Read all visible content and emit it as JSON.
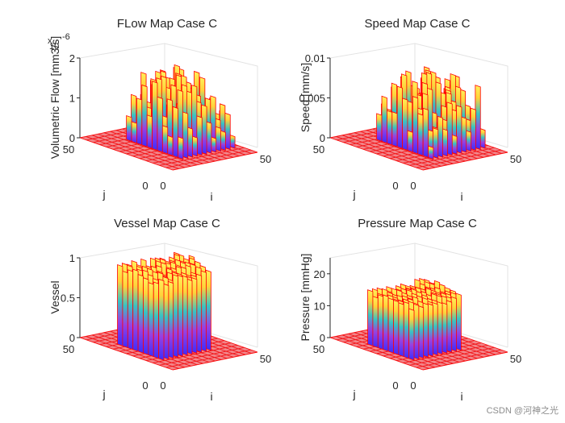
{
  "colors": {
    "mesh_edge": "#ff0000",
    "colormap": [
      "#3b2cff",
      "#7a3cff",
      "#c040c0",
      "#30c8c8",
      "#ffd23a",
      "#ffe94a"
    ],
    "box": "#e3e3e3",
    "text": "#262626"
  },
  "chart_data": [
    {
      "type": "surface",
      "title": "FLow Map Case C",
      "zlabel": "Volumetric Flow [mm3/s]",
      "exponent_marker": "x",
      "exponent": "10",
      "exponent_power": "-6",
      "xlabel": "i",
      "ylabel": "j",
      "x_tick_labels": [
        "0",
        "50"
      ],
      "y_tick_labels": [
        "50",
        "0"
      ],
      "z_tick_labels": [
        "0",
        "1",
        "2"
      ],
      "zlim": [
        0,
        2
      ],
      "x_range": [
        0,
        50
      ],
      "y_range": [
        0,
        50
      ],
      "surface": "sparse",
      "peak_relative": 0.85
    },
    {
      "type": "surface",
      "title": "Speed Map Case C",
      "zlabel": "Speed [mm/s]",
      "xlabel": "i",
      "ylabel": "j",
      "x_tick_labels": [
        "0",
        "50"
      ],
      "y_tick_labels": [
        "50",
        "0"
      ],
      "z_tick_labels": [
        "0",
        "0.005",
        "0.01"
      ],
      "zlim": [
        0,
        0.01
      ],
      "x_range": [
        0,
        50
      ],
      "y_range": [
        0,
        50
      ],
      "surface": "sparse",
      "peak_relative": 0.85
    },
    {
      "type": "surface",
      "title": "Vessel Map Case C",
      "zlabel": "Vessel",
      "xlabel": "i",
      "ylabel": "j",
      "x_tick_labels": [
        "0",
        "50"
      ],
      "y_tick_labels": [
        "50",
        "0"
      ],
      "z_tick_labels": [
        "0",
        "0.5",
        "1"
      ],
      "zlim": [
        0,
        1
      ],
      "x_range": [
        0,
        50
      ],
      "y_range": [
        0,
        50
      ],
      "surface": "plateau",
      "plateau_value": 1
    },
    {
      "type": "surface",
      "title": "Pressure Map Case C",
      "zlabel": "Pressure [mmHg]",
      "xlabel": "i",
      "ylabel": "j",
      "x_tick_labels": [
        "0",
        "50"
      ],
      "y_tick_labels": [
        "50",
        "0"
      ],
      "z_tick_labels": [
        "0",
        "10",
        "20"
      ],
      "zlim": [
        0,
        25
      ],
      "x_range": [
        0,
        50
      ],
      "y_range": [
        0,
        50
      ],
      "surface": "plateau",
      "plateau_value": 17
    }
  ],
  "watermark": "CSDN @河神之光"
}
